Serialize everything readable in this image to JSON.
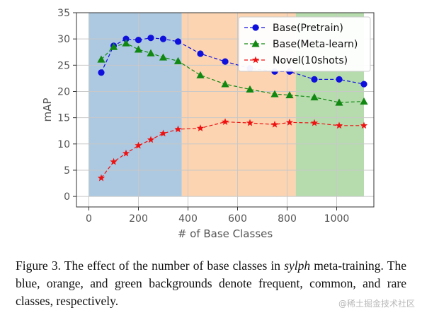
{
  "chart_data": {
    "type": "line",
    "title": "",
    "xlabel": "# of Base Classes",
    "ylabel": "mAP",
    "xlim": [
      -50,
      1150
    ],
    "ylim": [
      -2,
      35
    ],
    "xticks": [
      0,
      200,
      400,
      600,
      800,
      1000
    ],
    "yticks": [
      0,
      5,
      10,
      15,
      20,
      25,
      30,
      35
    ],
    "grid": true,
    "legend_position": "top-right",
    "background_bands": [
      {
        "label": "frequent",
        "x_range": [
          0,
          375
        ],
        "color": "#9ebfdc"
      },
      {
        "label": "common",
        "x_range": [
          375,
          835
        ],
        "color": "#fbcca3"
      },
      {
        "label": "rare",
        "x_range": [
          835,
          1110
        ],
        "color": "#a9d6a0"
      }
    ],
    "series": [
      {
        "name": "Base(Pretrain)",
        "color": "#1010dd",
        "marker": "circle",
        "x": [
          50,
          100,
          150,
          200,
          250,
          300,
          360,
          450,
          550,
          650,
          750,
          810,
          910,
          1010,
          1110
        ],
        "values": [
          23.6,
          28.7,
          30.0,
          29.8,
          30.2,
          30.0,
          29.5,
          27.2,
          25.7,
          24.4,
          23.8,
          23.8,
          22.3,
          22.3,
          21.4
        ]
      },
      {
        "name": "Base(Meta-learn)",
        "color": "#118811",
        "marker": "triangle",
        "x": [
          50,
          100,
          150,
          200,
          250,
          300,
          360,
          450,
          550,
          650,
          750,
          810,
          910,
          1010,
          1110
        ],
        "values": [
          26.1,
          28.5,
          29.2,
          28.0,
          27.3,
          26.5,
          25.8,
          23.1,
          21.4,
          20.4,
          19.5,
          19.3,
          18.9,
          17.9,
          18.1
        ]
      },
      {
        "name": "Novel(10shots)",
        "color": "#ee1111",
        "marker": "star",
        "x": [
          50,
          100,
          150,
          200,
          250,
          300,
          360,
          450,
          550,
          650,
          750,
          810,
          910,
          1010,
          1110
        ],
        "values": [
          3.5,
          6.6,
          8.2,
          9.7,
          10.8,
          12.0,
          12.8,
          13.0,
          14.2,
          14.0,
          13.7,
          14.1,
          14.0,
          13.5,
          13.5
        ]
      }
    ]
  },
  "caption": {
    "prefix": "Figure 3.  The effect of the number of base classes in ",
    "italic": "sylph",
    "suffix": " meta-training.  The blue, orange, and green backgrounds denote frequent, common, and rare classes, respectively."
  },
  "watermark": "@稀土掘金技术社区"
}
